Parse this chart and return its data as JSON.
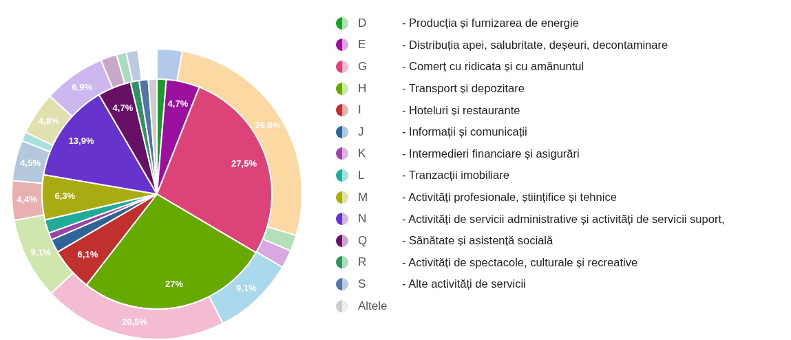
{
  "chart_data": {
    "type": "pie",
    "legend": "right",
    "categories": [
      null,
      null,
      "D",
      "E",
      null,
      "G",
      "H",
      "I",
      "J",
      "K",
      "L",
      "M",
      "N",
      "Q",
      "R",
      "S",
      "Altele"
    ],
    "series": [
      {
        "colors": [
          "#b3c9ec",
          "#fcd9a3",
          "#b3e0b8",
          "#d9a8e0",
          "#aad8ec",
          "#f3bcd2",
          "#cfe6ae",
          "#e8b0b0",
          "#b4c8dc",
          "#d8b6dc",
          "#a8e0dc",
          "#e1e1b0",
          "#ccb8ee",
          "#c8aac8",
          "#aadcc0",
          "#bccae0",
          "#ffffff"
        ],
        "values": [
          2.8,
          26.8,
          1.8,
          2.0,
          9.1,
          20.5,
          9.1,
          4.4,
          4.5,
          null,
          1.0,
          4.8,
          6.9,
          1.8,
          1.1,
          1.3,
          2.1
        ],
        "value_labels": [
          null,
          "26,8%",
          null,
          null,
          "9,1%",
          "20,5%",
          "9,1%",
          "4,4%",
          "4,5%",
          null,
          null,
          "4,8%",
          "6,9%",
          null,
          null,
          null,
          null
        ]
      },
      {
        "colors": [
          "#ffffff",
          "#ffffff",
          "#1a9c2a",
          "#9b0f9e",
          "#ffffff",
          "#dc4479",
          "#66aa00",
          "#c0302f",
          "#2f6496",
          "#9a44a8",
          "#22aa99",
          "#aaaa11",
          "#6633cc",
          "#661166",
          "#329262",
          "#5574a6",
          "#cccccc"
        ],
        "values": [
          null,
          null,
          1.3,
          4.7,
          null,
          27.5,
          27,
          6.1,
          1.9,
          1.0,
          1.9,
          6.3,
          13.9,
          4.7,
          1.2,
          1.3,
          1.2
        ],
        "value_labels": [
          null,
          null,
          null,
          "4,7%",
          null,
          "27,5%",
          "27%",
          "6,1%",
          null,
          null,
          null,
          "6,3%",
          "13,9%",
          "4,7%",
          null,
          null,
          null
        ]
      }
    ],
    "annotations": [
      "- Producția și furnizarea de energie",
      "- Distribuția apei, salubritate, deșeuri, decontaminare",
      "- Comerț cu ridicata și cu amănuntul",
      "- Transport și depozitare",
      "- Hoteluri și restaurante",
      "- Informații și comunicații",
      "- Intermedieri financiare și asigurări",
      "- Tranzacții imobiliare",
      "- Activități profesionale, științifice și tehnice",
      "- Activități de servicii administrative și activități de servicii suport,",
      "- Sănătate și asistență socială",
      "- Activități de spectacole, culturale și recreative",
      "- Alte activități de servicii"
    ]
  }
}
